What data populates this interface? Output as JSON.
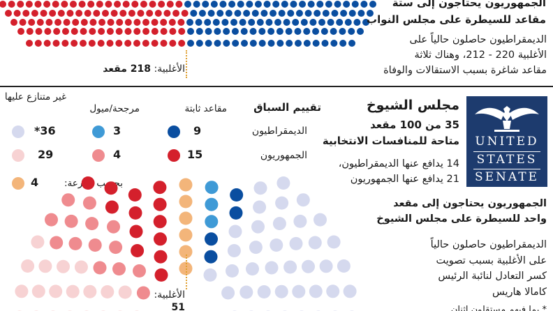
{
  "house": {
    "headline_line1": "الجمهوريون يحتاجون إلى ستة",
    "headline_line2": "مقاعد للسيطرة على مجلس النواب",
    "body": [
      "الديمقراطيون حاصلون حالياً على",
      "الأغلبية 220 - 212، وهناك ثلاثة",
      "مقاعد شاغرة بسبب الاستقالات والوفاة"
    ],
    "majority_label": "الأغلبية:",
    "majority_value": "218 مقعد"
  },
  "senate": {
    "title": "مجلس الشيوخ",
    "seats_line": "35 من 100 مقعد",
    "seats_line2": "متاحة للمنافسات الانتخابية",
    "defend_dem": "14 يدافع عنها الديمقراطيون،",
    "defend_rep": "21 يدافع عنها الجمهوريون",
    "logo": {
      "line1": "UNITED",
      "line2": "STATES",
      "line3": "SENATE"
    },
    "need_line1": "الجمهوريون يحتاجون إلى مقعد",
    "need_line2": "واحد للسيطرة على مجلس الشيوخ",
    "body": [
      "الديمقراطيون حاصلون حالياً",
      "على الأغلبية بسبب تصويت",
      "كسر التعادل لنائبة الرئيس",
      "كامالا هاريس"
    ],
    "majority_label": "الأغلبية:",
    "majority_value": "51",
    "footnote": "* بما فيهم مستقلون اثنان"
  },
  "rating": {
    "title": "تقييم السباق",
    "col_solid": "مقاعد ثابتة",
    "col_lean": "مرجحة/ميول",
    "col_uncontested": "غير متنازع عليها",
    "row_dem": "الديمقراطيون",
    "row_rep": "الجمهوريون",
    "dem_solid": "9",
    "dem_lean": "3",
    "dem_uncontested": "36*",
    "rep_solid": "15",
    "rep_lean": "4",
    "rep_uncontested": "29",
    "tossup_label": "بحسب القرعة:",
    "tossup_value": "4"
  },
  "colors": {
    "dem_solid": "#0a4ea0",
    "dem_lean": "#3f9ad6",
    "dem_uncontested": "#d5d9ee",
    "rep_solid": "#d4202c",
    "rep_lean": "#ef8b8f",
    "rep_uncontested": "#f7d2d3",
    "tossup": "#f3b57a",
    "navy": "#1d3b6e"
  }
}
